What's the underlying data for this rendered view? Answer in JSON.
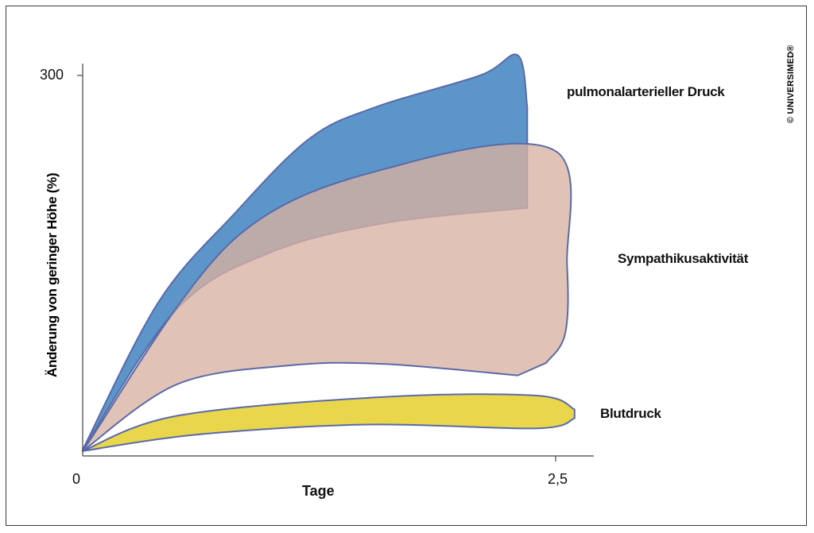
{
  "chart_data": {
    "type": "area",
    "xlabel": "Tage",
    "ylabel": "Änderung von geringer Höhe (%)",
    "x_ticks": [
      "0",
      "2,5"
    ],
    "y_ticks": [
      "300"
    ],
    "xlim": [
      0,
      2.5
    ],
    "ylim": [
      0,
      300
    ],
    "grid": false,
    "legend": "inline labels right of areas",
    "series": [
      {
        "name": "pulmonalarterieller Druck",
        "color": "#5c95c9",
        "stroke": "#5a6aa8",
        "upper": [
          [
            0,
            3
          ],
          [
            0.4,
            120
          ],
          [
            0.8,
            190
          ],
          [
            1.2,
            250
          ],
          [
            1.55,
            275
          ],
          [
            2.1,
            300
          ],
          [
            2.3,
            316
          ],
          [
            2.35,
            275
          ]
        ],
        "lower": [
          [
            0,
            3
          ],
          [
            0.5,
            115
          ],
          [
            1.0,
            160
          ],
          [
            1.6,
            183
          ],
          [
            2.35,
            195
          ]
        ]
      },
      {
        "name": "Sympathikusaktivität",
        "color": "#d8b1a1",
        "stroke": "#5a6aa8",
        "upper": [
          [
            0,
            2
          ],
          [
            0.8,
            170
          ],
          [
            1.7,
            230
          ],
          [
            2.5,
            240
          ],
          [
            2.56,
            150
          ],
          [
            2.55,
            95
          ],
          [
            2.45,
            72
          ]
        ],
        "lower": [
          [
            0,
            2
          ],
          [
            0.5,
            55
          ],
          [
            1.1,
            70
          ],
          [
            1.6,
            71
          ],
          [
            2.3,
            62
          ]
        ]
      },
      {
        "name": "Blutdruck",
        "color": "#e9d64a",
        "stroke": "#5a6aa8",
        "upper": [
          [
            0,
            2
          ],
          [
            0.5,
            30
          ],
          [
            1.6,
            45
          ],
          [
            2.4,
            46
          ],
          [
            2.6,
            35
          ]
        ],
        "lower": [
          [
            0,
            2
          ],
          [
            0.6,
            15
          ],
          [
            1.5,
            23
          ],
          [
            2.4,
            20
          ],
          [
            2.6,
            28
          ]
        ]
      }
    ]
  },
  "copyright": "© UNIVERSIMED®"
}
